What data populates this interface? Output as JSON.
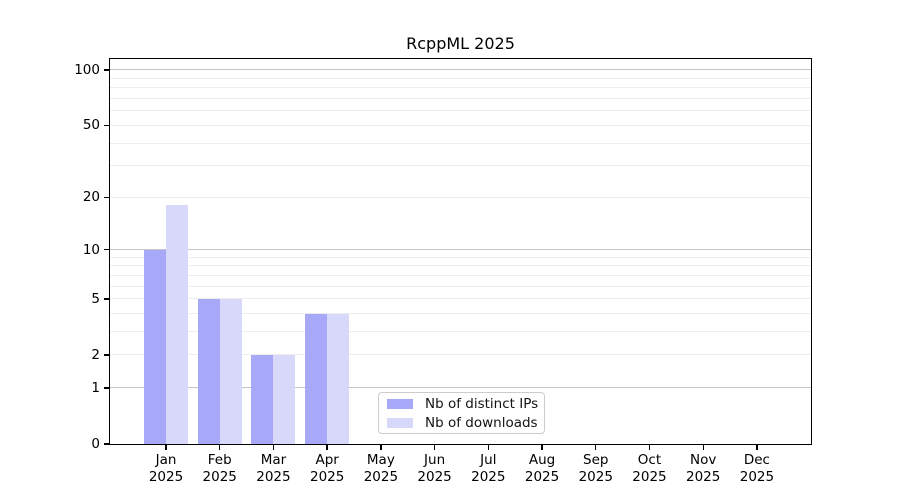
{
  "chart_data": {
    "type": "bar",
    "title": "RcppML 2025",
    "x_categories": [
      "Jan",
      "Feb",
      "Mar",
      "Apr",
      "May",
      "Jun",
      "Jul",
      "Aug",
      "Sep",
      "Oct",
      "Nov",
      "Dec"
    ],
    "x_sublabel": "2025",
    "series": [
      {
        "name": "Nb of distinct IPs",
        "color": "#a8a8f8",
        "values": [
          10,
          5,
          2,
          4,
          0,
          0,
          0,
          0,
          0,
          0,
          0,
          0
        ]
      },
      {
        "name": "Nb of downloads",
        "color": "#d8d8fb",
        "values": [
          18,
          5,
          2,
          4,
          0,
          0,
          0,
          0,
          0,
          0,
          0,
          0
        ]
      }
    ],
    "y_axis": {
      "scale": "log10(1+x)",
      "ticks": [
        100,
        50,
        20,
        10,
        5,
        2,
        1,
        0
      ],
      "range": [
        0,
        114
      ]
    },
    "grid": {
      "decade_lines": [
        1,
        10,
        100
      ],
      "minor_lines": [
        2,
        3,
        4,
        5,
        6,
        7,
        8,
        9,
        20,
        30,
        40,
        50,
        60,
        70,
        80,
        90
      ],
      "decade_color": "#c6c6c6",
      "minor_color": "#ededed"
    },
    "legend_position": "lower center"
  }
}
